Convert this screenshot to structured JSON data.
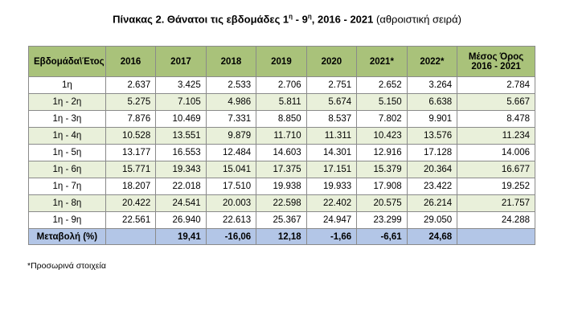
{
  "title": {
    "bold_part": "Πίνακας 2. Θάνατοι τις εβδομάδες 1",
    "sup1": "η",
    "mid": " - 9",
    "sup2": "η",
    "years": ", 2016 - 2021",
    "normal_part": " (αθροιστική σειρά)"
  },
  "table": {
    "headers": [
      "Εβδομάδα\\Έτος",
      "2016",
      "2017",
      "2018",
      "2019",
      "2020",
      "2021*",
      "2022*",
      "Μέσος Όρος 2016 - 2021"
    ],
    "rows": [
      [
        "1η",
        "2.637",
        "3.425",
        "2.533",
        "2.706",
        "2.751",
        "2.652",
        "3.264",
        "2.784"
      ],
      [
        "1η - 2η",
        "5.275",
        "7.105",
        "4.986",
        "5.811",
        "5.674",
        "5.150",
        "6.638",
        "5.667"
      ],
      [
        "1η - 3η",
        "7.876",
        "10.469",
        "7.331",
        "8.850",
        "8.537",
        "7.802",
        "9.901",
        "8.478"
      ],
      [
        "1η - 4η",
        "10.528",
        "13.551",
        "9.879",
        "11.710",
        "11.311",
        "10.423",
        "13.576",
        "11.234"
      ],
      [
        "1η - 5η",
        "13.177",
        "16.553",
        "12.484",
        "14.603",
        "14.301",
        "12.916",
        "17.128",
        "14.006"
      ],
      [
        "1η - 6η",
        "15.771",
        "19.343",
        "15.041",
        "17.375",
        "17.151",
        "15.379",
        "20.364",
        "16.677"
      ],
      [
        "1η - 7η",
        "18.207",
        "22.018",
        "17.510",
        "19.938",
        "19.933",
        "17.908",
        "23.422",
        "19.252"
      ],
      [
        "1η - 8η",
        "20.422",
        "24.541",
        "20.003",
        "22.598",
        "22.402",
        "20.575",
        "26.214",
        "21.757"
      ],
      [
        "1η - 9η",
        "22.561",
        "26.940",
        "22.613",
        "25.367",
        "24.947",
        "23.299",
        "29.050",
        "24.288"
      ]
    ],
    "footer": [
      "Μεταβολή (%)",
      "",
      "19,41",
      "-16,06",
      "12,18",
      "-1,66",
      "-6,61",
      "24,68",
      ""
    ]
  },
  "note": "*Προσωρινά στοιχεία",
  "colors": {
    "header_bg": "#a9c27a",
    "alt_row_bg": "#e9f0da",
    "footer_bg": "#b3c6e7"
  }
}
